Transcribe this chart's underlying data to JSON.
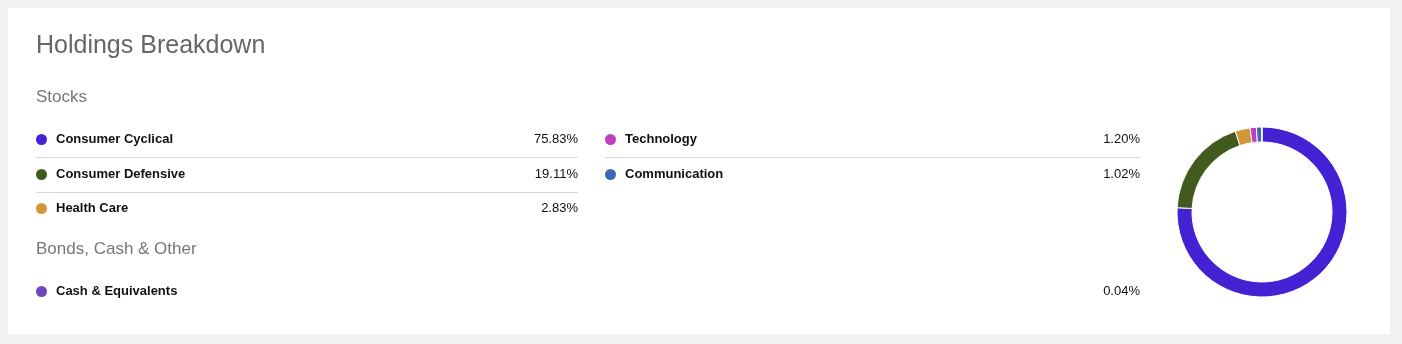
{
  "chart_data": {
    "type": "donut",
    "title": "Holdings Breakdown",
    "annotations": [
      "Stocks",
      "Bonds, Cash & Other"
    ],
    "categories": [
      "Consumer Cyclical",
      "Consumer Defensive",
      "Health Care",
      "Technology",
      "Communication",
      "Cash & Equivalents"
    ],
    "values": [
      75.83,
      19.11,
      2.83,
      1.2,
      1.02,
      0.04
    ],
    "value_labels": [
      "75.83%",
      "19.11%",
      "2.83%",
      "1.20%",
      "1.02%",
      "0.04%"
    ],
    "colors": [
      "#4422d4",
      "#435a1f",
      "#d4963a",
      "#c03fbf",
      "#3b6bb5",
      "#7045bd"
    ],
    "legend": "left"
  }
}
